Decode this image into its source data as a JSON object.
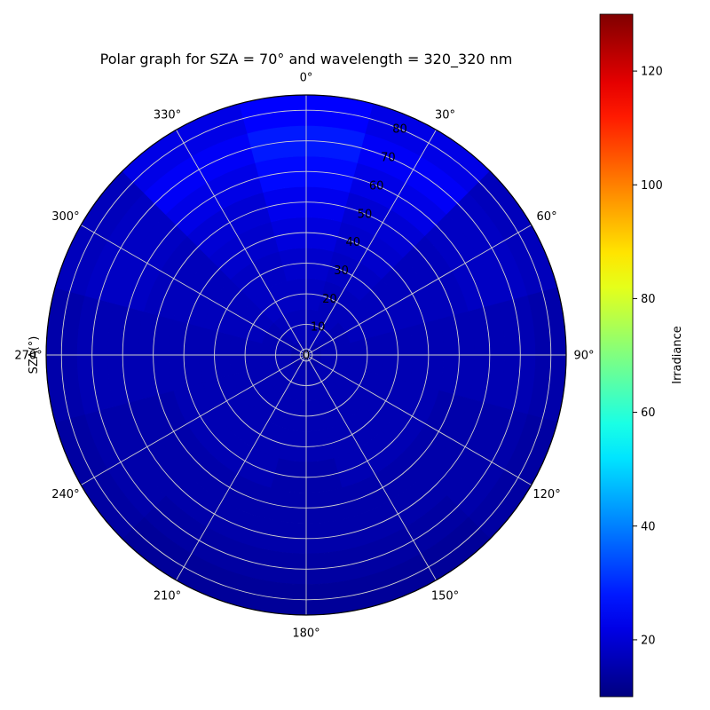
{
  "chart_data": {
    "type": "heatmap",
    "projection": "polar",
    "title": "Polar graph for SZA = 70° and wavelength = 320_320 nm",
    "radial_label": "SZA(°)",
    "colorbar_label": "Irradiance",
    "colormap": "jet",
    "color_range": [
      10,
      130
    ],
    "colorbar_ticks": [
      "20",
      "40",
      "60",
      "80",
      "100",
      "120"
    ],
    "colorbar_tick_values": [
      20,
      40,
      60,
      80,
      100,
      120
    ],
    "angular_ticks": [
      "0°",
      "30°",
      "60°",
      "90°",
      "120°",
      "150°",
      "180°",
      "210°",
      "240°",
      "270°",
      "300°",
      "330°"
    ],
    "angular_tick_values": [
      0,
      30,
      60,
      90,
      120,
      150,
      180,
      210,
      240,
      270,
      300,
      330
    ],
    "theta_zero_location": "top",
    "theta_direction": "clockwise",
    "radial_ticks": [
      "0",
      "10",
      "20",
      "30",
      "40",
      "50",
      "60",
      "70",
      "80"
    ],
    "radial_tick_values": [
      0,
      10,
      20,
      30,
      40,
      50,
      60,
      70,
      80
    ],
    "radial_range": [
      0,
      85
    ],
    "grid": true,
    "azimuth_bins": [
      0,
      30,
      60,
      90,
      120,
      150,
      180,
      210,
      240,
      270,
      300,
      330
    ],
    "zenith_bins": [
      0,
      10,
      20,
      30,
      40,
      50,
      60,
      70,
      80
    ],
    "irradiance_estimate": [
      [
        16,
        16,
        15,
        15,
        15,
        15,
        15,
        15,
        15,
        15,
        15,
        16
      ],
      [
        17,
        17,
        16,
        16,
        16,
        16,
        16,
        16,
        16,
        16,
        16,
        17
      ],
      [
        18,
        17,
        17,
        16,
        16,
        16,
        16,
        16,
        16,
        16,
        17,
        18
      ],
      [
        19,
        18,
        17,
        16,
        16,
        16,
        16,
        16,
        16,
        16,
        17,
        18
      ],
      [
        21,
        19,
        17,
        16,
        16,
        16,
        15,
        16,
        16,
        16,
        17,
        19
      ],
      [
        23,
        20,
        17,
        16,
        15,
        15,
        15,
        15,
        15,
        16,
        17,
        20
      ],
      [
        26,
        22,
        18,
        16,
        15,
        15,
        15,
        15,
        15,
        16,
        18,
        22
      ],
      [
        28,
        24,
        18,
        16,
        15,
        14,
        14,
        14,
        15,
        16,
        18,
        24
      ],
      [
        25,
        22,
        17,
        15,
        14,
        13,
        13,
        13,
        14,
        15,
        17,
        22
      ]
    ]
  }
}
